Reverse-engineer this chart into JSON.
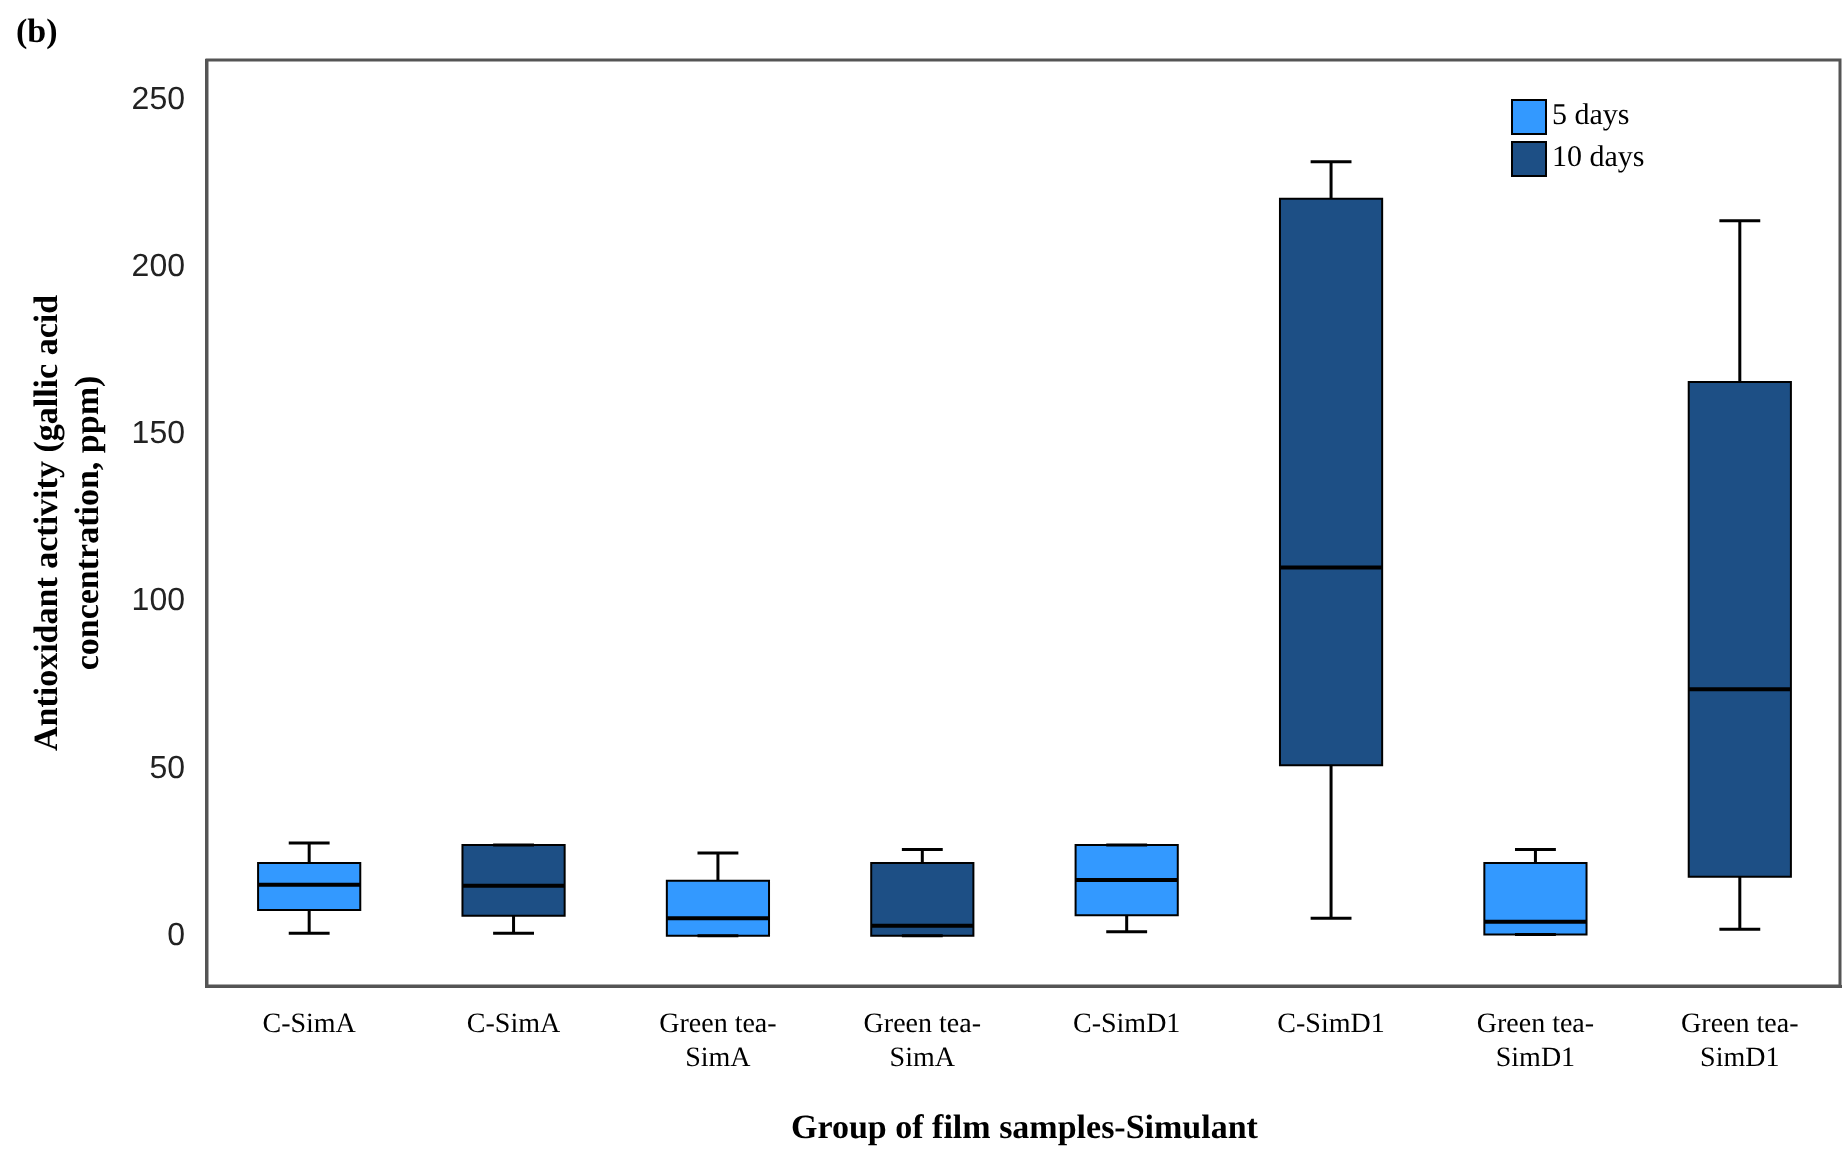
{
  "chart_data": {
    "type": "box",
    "annotations": [
      "(b)"
    ],
    "xlabel": "Group of film samples-Simulant",
    "ylabel": "Antioxidant activity (gallic acid concentration, ppm)",
    "categories": [
      "C-SimA",
      "C-SimA",
      "Green tea-SimA",
      "Green tea-SimA",
      "C-SimD1",
      "C-SimD1",
      "Green tea-SimD1",
      "Green tea-SimD1"
    ],
    "ylim": [
      -15,
      262
    ],
    "yticks": [
      0,
      50,
      100,
      150,
      200,
      250
    ],
    "grid": false,
    "legend": "top right",
    "series": [
      {
        "name": "5 days",
        "color": "#3399ff",
        "boxes": [
          {
            "low": 0.8,
            "q1": 7.7,
            "median": 15.3,
            "q3": 21.8,
            "high": 27.8
          },
          null,
          {
            "low": 0,
            "q1": 0,
            "median": 5.3,
            "q3": 16.5,
            "high": 24.8
          },
          null,
          {
            "low": 1.2,
            "q1": 6.2,
            "median": 16.7,
            "q3": 27.2,
            "high": 27.2
          },
          null,
          {
            "low": 0.4,
            "q1": 0.4,
            "median": 4.2,
            "q3": 21.8,
            "high": 25.8
          },
          null
        ]
      },
      {
        "name": "10 days",
        "color": "#1d4f85",
        "boxes": [
          null,
          {
            "low": 0.8,
            "q1": 6,
            "median": 15,
            "q3": 27.2,
            "high": 27.2
          },
          null,
          {
            "low": 0,
            "q1": 0,
            "median": 3,
            "q3": 21.8,
            "high": 25.8
          },
          null,
          {
            "low": 5.3,
            "q1": 51,
            "median": 110.2,
            "q3": 220.5,
            "high": 231.6
          },
          null,
          {
            "low": 2,
            "q1": 17.7,
            "median": 73.8,
            "q3": 165.7,
            "high": 213.9
          }
        ]
      }
    ]
  }
}
